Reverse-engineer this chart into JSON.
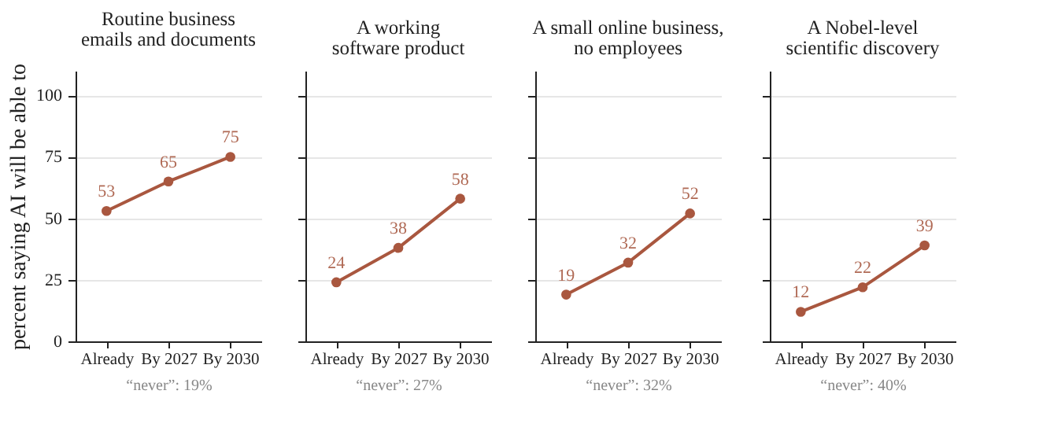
{
  "chart_data": [
    {
      "type": "line",
      "title": "Routine business\nemails and documents",
      "ylabel": "percent saying AI will be able to",
      "categories": [
        "Already",
        "By 2027",
        "By 2030"
      ],
      "series": [
        {
          "color": "#a9573f",
          "values": [
            53,
            65,
            75
          ]
        }
      ],
      "ylim": [
        0,
        110
      ],
      "yticks": [
        0,
        25,
        50,
        75,
        100
      ],
      "grid": "y",
      "marker": "circle",
      "data_labels": true,
      "annotations": [
        "“never”: 19%"
      ]
    },
    {
      "type": "line",
      "title": "A working\nsoftware product",
      "categories": [
        "Already",
        "By 2027",
        "By 2030"
      ],
      "series": [
        {
          "color": "#a9573f",
          "values": [
            24,
            38,
            58
          ]
        }
      ],
      "ylim": [
        0,
        110
      ],
      "yticks": [
        0,
        25,
        50,
        75,
        100
      ],
      "grid": "y",
      "marker": "circle",
      "data_labels": true,
      "tick_labels": "x",
      "annotations": [
        "“never”: 27%"
      ]
    },
    {
      "type": "line",
      "title": "A small online business,\nno employees",
      "categories": [
        "Already",
        "By 2027",
        "By 2030"
      ],
      "series": [
        {
          "color": "#a9573f",
          "values": [
            19,
            32,
            52
          ]
        }
      ],
      "ylim": [
        0,
        110
      ],
      "yticks": [
        0,
        25,
        50,
        75,
        100
      ],
      "grid": "y",
      "marker": "circle",
      "data_labels": true,
      "tick_labels": "x",
      "annotations": [
        "“never”: 32%"
      ]
    },
    {
      "type": "line",
      "title": "A Nobel-level\nscientific discovery",
      "categories": [
        "Already",
        "By 2027",
        "By 2030"
      ],
      "series": [
        {
          "color": "#a9573f",
          "values": [
            12,
            22,
            39
          ]
        }
      ],
      "ylim": [
        0,
        110
      ],
      "yticks": [
        0,
        25,
        50,
        75,
        100
      ],
      "grid": "y",
      "marker": "circle",
      "data_labels": true,
      "tick_labels": "x",
      "annotations": [
        "“never”: 40%"
      ]
    }
  ]
}
